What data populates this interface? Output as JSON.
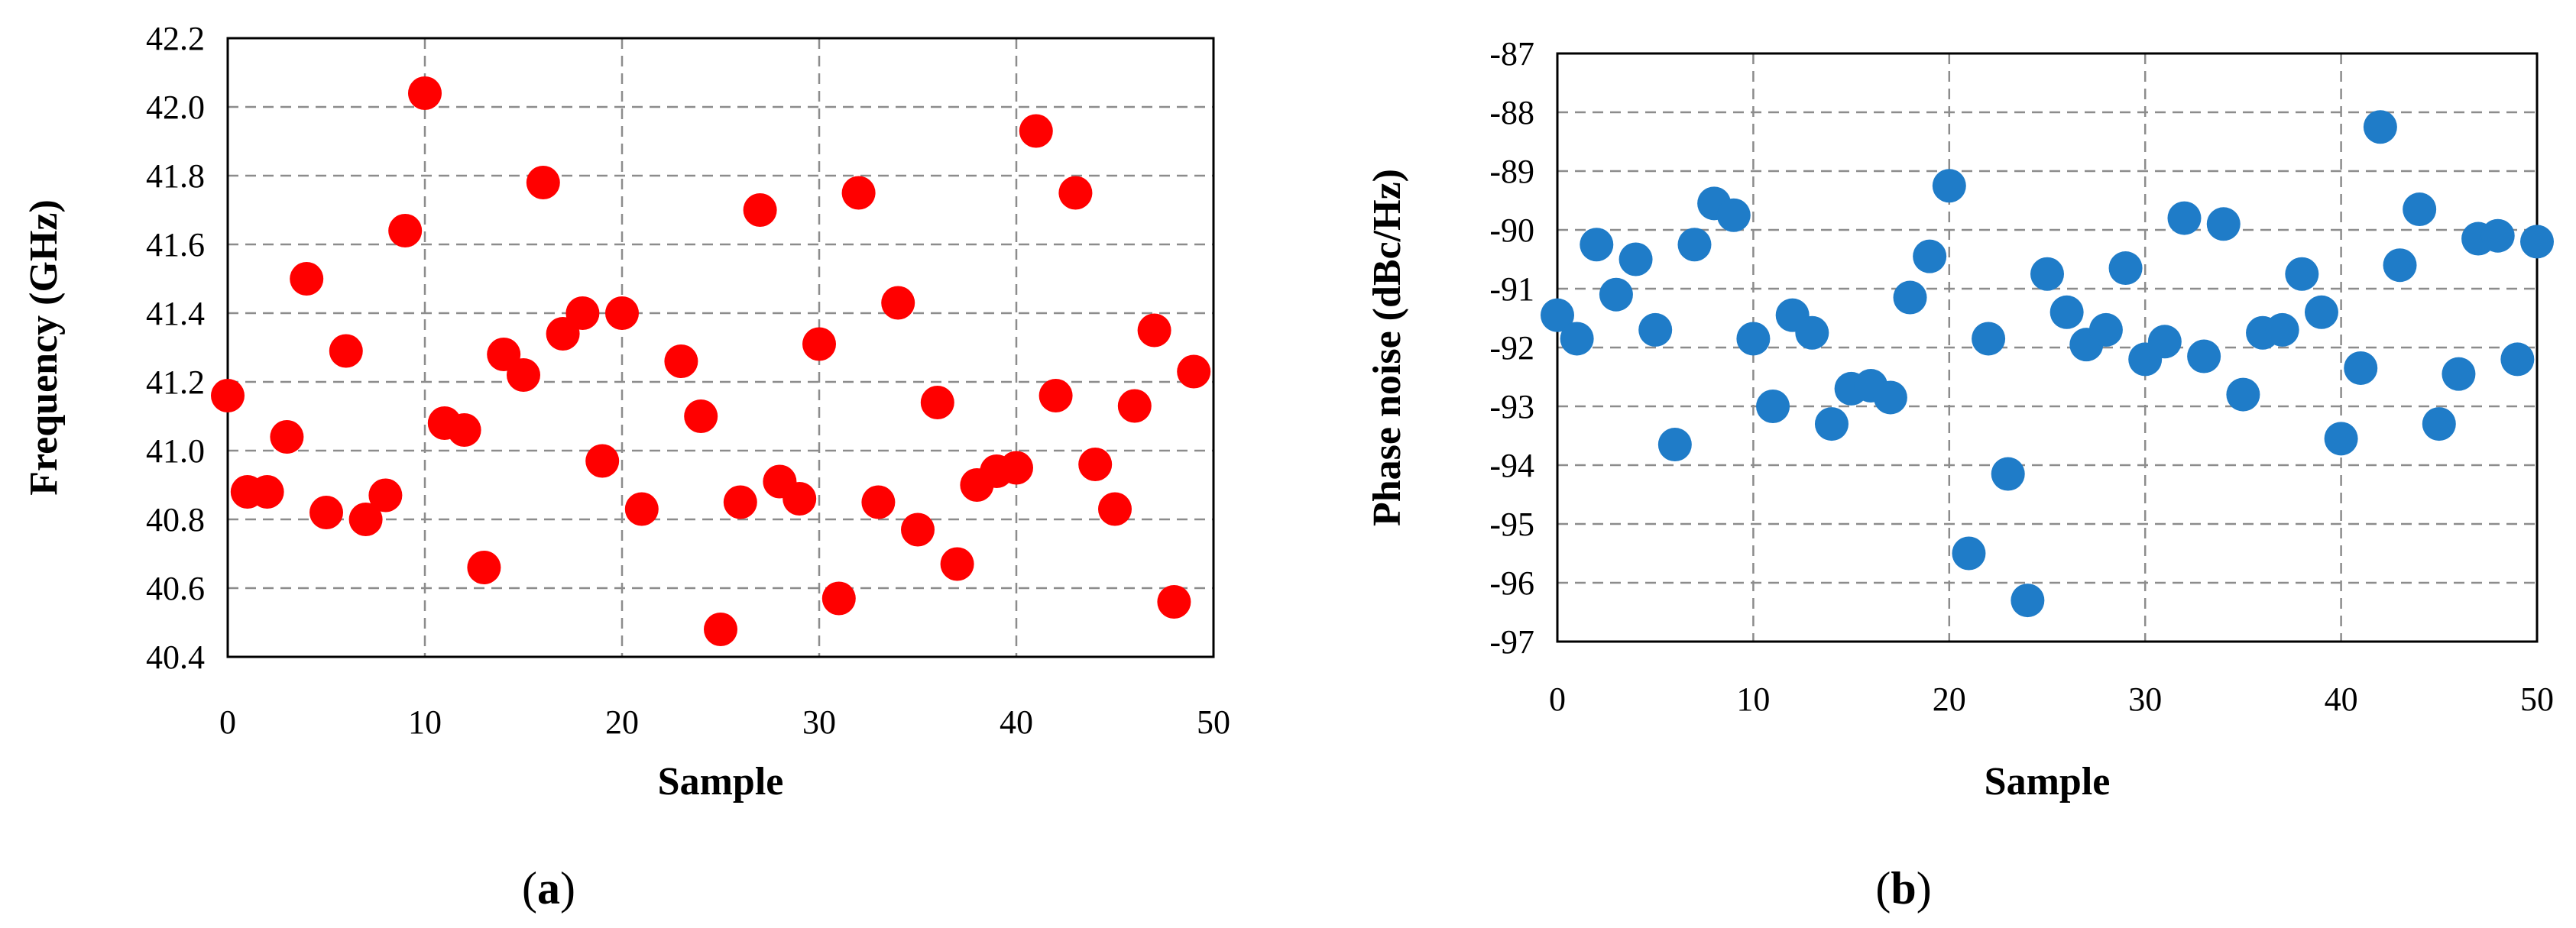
{
  "panels": [
    {
      "label_open": "(",
      "label_letter": "a",
      "label_close": ")"
    },
    {
      "label_open": "(",
      "label_letter": "b",
      "label_close": ")"
    }
  ],
  "chart_data": [
    {
      "type": "scatter",
      "title": "",
      "xlabel": "Sample",
      "ylabel": "Frequency (GHz)",
      "xlim": [
        0,
        50
      ],
      "ylim": [
        40.4,
        42.2
      ],
      "xticks": [
        0,
        10,
        20,
        30,
        40,
        50
      ],
      "yticks": [
        40.4,
        40.6,
        40.8,
        41.0,
        41.2,
        41.4,
        41.6,
        41.8,
        42.0,
        42.2
      ],
      "ytick_labels": [
        "40.4",
        "40.6",
        "40.8",
        "41.0",
        "41.2",
        "41.4",
        "41.6",
        "41.8",
        "42.0",
        "42.2"
      ],
      "grid": true,
      "marker_color": "#ff0000",
      "x": [
        0,
        1,
        2,
        3,
        4,
        5,
        6,
        7,
        8,
        9,
        10,
        11,
        12,
        13,
        14,
        15,
        16,
        17,
        18,
        19,
        20,
        21,
        23,
        24,
        25,
        26,
        27,
        28,
        29,
        30,
        31,
        32,
        33,
        34,
        35,
        36,
        37,
        38,
        39,
        40,
        41,
        42,
        43,
        44,
        45,
        46,
        47,
        48,
        49
      ],
      "y": [
        41.16,
        40.88,
        40.88,
        41.04,
        41.5,
        40.82,
        41.29,
        40.8,
        40.87,
        41.64,
        42.04,
        41.08,
        41.06,
        40.66,
        41.28,
        41.22,
        41.78,
        41.34,
        41.4,
        40.97,
        41.4,
        40.83,
        41.26,
        41.1,
        40.48,
        40.85,
        41.7,
        40.91,
        40.86,
        41.31,
        40.57,
        41.75,
        40.85,
        41.43,
        40.77,
        41.14,
        40.67,
        40.9,
        40.94,
        40.95,
        41.93,
        41.16,
        41.75,
        40.96,
        40.83,
        41.13,
        41.35,
        40.56,
        41.23
      ]
    },
    {
      "type": "scatter",
      "title": "",
      "xlabel": "Sample",
      "ylabel": "Phase noise (dBc/Hz)",
      "xlim": [
        0,
        50
      ],
      "ylim": [
        -97,
        -87
      ],
      "xticks": [
        0,
        10,
        20,
        30,
        40,
        50
      ],
      "yticks": [
        -97,
        -96,
        -95,
        -94,
        -93,
        -92,
        -91,
        -90,
        -89,
        -88,
        -87
      ],
      "ytick_labels": [
        "-97",
        "-96",
        "-95",
        "-94",
        "-93",
        "-92",
        "-91",
        "-90",
        "-89",
        "-88",
        "-87"
      ],
      "grid": true,
      "marker_color": "#1f7cc8",
      "x": [
        0,
        1,
        2,
        3,
        4,
        5,
        6,
        7,
        8,
        9,
        10,
        11,
        12,
        13,
        14,
        15,
        16,
        17,
        18,
        19,
        20,
        21,
        22,
        23,
        24,
        25,
        26,
        27,
        28,
        29,
        30,
        31,
        32,
        33,
        34,
        35,
        36,
        37,
        38,
        39,
        40,
        41,
        42,
        43,
        44,
        45,
        46,
        47,
        48,
        49,
        50
      ],
      "y": [
        -91.45,
        -91.85,
        -90.25,
        -91.1,
        -90.5,
        -91.7,
        -93.65,
        -90.25,
        -89.55,
        -89.75,
        -91.85,
        -93.0,
        -91.45,
        -91.75,
        -93.3,
        -92.7,
        -92.65,
        -92.85,
        -91.15,
        -90.45,
        -89.25,
        -95.5,
        -91.85,
        -94.15,
        -96.3,
        -90.75,
        -91.4,
        -91.95,
        -91.7,
        -90.65,
        -92.2,
        -91.9,
        -89.8,
        -92.15,
        -89.9,
        -92.8,
        -91.75,
        -91.7,
        -90.75,
        -91.4,
        -93.55,
        -92.35,
        -88.25,
        -90.6,
        -89.65,
        -93.3,
        -92.45,
        -90.15,
        -90.1,
        -92.2,
        -90.2
      ]
    }
  ]
}
